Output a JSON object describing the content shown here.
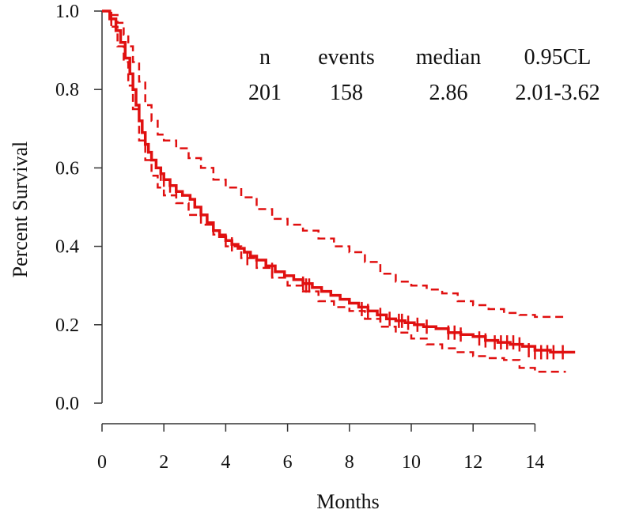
{
  "chart_data": {
    "type": "line",
    "title": "",
    "xlabel": "Months",
    "ylabel": "Percent Survival",
    "xlim": [
      0,
      15.5
    ],
    "ylim": [
      0,
      1.0
    ],
    "x_ticks": [
      "0",
      "2",
      "4",
      "6",
      "8",
      "10",
      "12",
      "14"
    ],
    "y_ticks": [
      "0.0",
      "0.2",
      "0.4",
      "0.6",
      "0.8",
      "1.0"
    ],
    "grid": false,
    "colors": {
      "line": "#e01010",
      "axis": "#333333"
    },
    "summary_table": {
      "headers": [
        "n",
        "events",
        "median",
        "0.95CL"
      ],
      "values": [
        "201",
        "158",
        "2.86",
        "2.01-3.62"
      ]
    },
    "series": [
      {
        "role": "estimate",
        "style": "solid",
        "x": [
          0,
          0.25,
          0.45,
          0.6,
          0.75,
          0.9,
          1.0,
          1.1,
          1.2,
          1.3,
          1.4,
          1.5,
          1.6,
          1.75,
          1.9,
          2.0,
          2.2,
          2.4,
          2.6,
          2.85,
          3.0,
          3.2,
          3.4,
          3.6,
          3.8,
          4.0,
          4.2,
          4.4,
          4.6,
          4.8,
          5.0,
          5.3,
          5.6,
          5.9,
          6.2,
          6.5,
          6.8,
          7.1,
          7.4,
          7.7,
          8.0,
          8.3,
          8.6,
          8.9,
          9.2,
          9.5,
          9.8,
          10.1,
          10.4,
          10.8,
          11.2,
          11.6,
          12.0,
          12.4,
          12.8,
          13.2,
          13.6,
          14.0,
          14.5,
          15.3
        ],
        "y": [
          1.0,
          0.98,
          0.95,
          0.92,
          0.88,
          0.84,
          0.8,
          0.76,
          0.72,
          0.69,
          0.66,
          0.64,
          0.62,
          0.6,
          0.585,
          0.57,
          0.555,
          0.54,
          0.53,
          0.52,
          0.5,
          0.48,
          0.46,
          0.44,
          0.425,
          0.415,
          0.405,
          0.395,
          0.385,
          0.375,
          0.365,
          0.35,
          0.335,
          0.325,
          0.315,
          0.305,
          0.295,
          0.285,
          0.275,
          0.265,
          0.255,
          0.245,
          0.235,
          0.225,
          0.215,
          0.21,
          0.205,
          0.2,
          0.195,
          0.19,
          0.18,
          0.175,
          0.17,
          0.16,
          0.155,
          0.15,
          0.145,
          0.135,
          0.13,
          0.13
        ]
      },
      {
        "role": "upper CL",
        "style": "dashed",
        "x": [
          0,
          0.3,
          0.5,
          0.7,
          0.85,
          1.0,
          1.2,
          1.4,
          1.6,
          1.8,
          2.0,
          2.4,
          2.8,
          3.2,
          3.6,
          4.0,
          4.5,
          5.0,
          5.5,
          6.0,
          6.5,
          7.0,
          7.5,
          8.0,
          8.5,
          9.0,
          9.5,
          10.0,
          10.5,
          11.0,
          11.5,
          12.0,
          12.5,
          13.0,
          13.5,
          14.0,
          14.5,
          15.0
        ],
        "y": [
          1.0,
          0.99,
          0.97,
          0.94,
          0.91,
          0.87,
          0.82,
          0.76,
          0.72,
          0.685,
          0.67,
          0.65,
          0.625,
          0.6,
          0.57,
          0.55,
          0.525,
          0.495,
          0.47,
          0.455,
          0.44,
          0.42,
          0.4,
          0.385,
          0.36,
          0.33,
          0.31,
          0.3,
          0.29,
          0.28,
          0.26,
          0.25,
          0.24,
          0.23,
          0.225,
          0.22,
          0.22,
          0.22
        ]
      },
      {
        "role": "lower CL",
        "style": "dashed",
        "x": [
          0,
          0.3,
          0.5,
          0.7,
          0.85,
          1.0,
          1.2,
          1.4,
          1.6,
          1.8,
          2.0,
          2.4,
          2.8,
          3.2,
          3.6,
          4.0,
          4.5,
          5.0,
          5.5,
          6.0,
          6.5,
          7.0,
          7.5,
          8.0,
          8.5,
          9.0,
          9.5,
          10.0,
          10.5,
          11.0,
          11.5,
          12.0,
          12.5,
          13.0,
          13.5,
          14.0,
          14.5,
          15.0
        ],
        "y": [
          1.0,
          0.96,
          0.91,
          0.87,
          0.81,
          0.75,
          0.67,
          0.62,
          0.58,
          0.55,
          0.53,
          0.51,
          0.48,
          0.455,
          0.43,
          0.4,
          0.37,
          0.345,
          0.32,
          0.3,
          0.285,
          0.26,
          0.245,
          0.235,
          0.215,
          0.195,
          0.18,
          0.165,
          0.15,
          0.14,
          0.13,
          0.12,
          0.115,
          0.11,
          0.09,
          0.08,
          0.08,
          0.08
        ]
      }
    ],
    "censor_marks": {
      "x": [
        0.3,
        1.9,
        2.0,
        2.2,
        2.4,
        4.2,
        4.7,
        5.5,
        6.5,
        6.6,
        6.7,
        8.4,
        8.6,
        9.0,
        9.3,
        9.6,
        9.7,
        9.9,
        10.2,
        10.5,
        11.2,
        11.4,
        11.6,
        12.2,
        12.4,
        12.7,
        12.9,
        13.1,
        13.3,
        13.5,
        13.8,
        14.0,
        14.2,
        14.4,
        14.6,
        14.9
      ],
      "y": [
        0.98,
        0.585,
        0.57,
        0.555,
        0.54,
        0.405,
        0.37,
        0.34,
        0.305,
        0.3,
        0.3,
        0.24,
        0.235,
        0.225,
        0.215,
        0.21,
        0.21,
        0.205,
        0.2,
        0.195,
        0.18,
        0.18,
        0.175,
        0.165,
        0.16,
        0.155,
        0.155,
        0.155,
        0.155,
        0.15,
        0.135,
        0.13,
        0.13,
        0.13,
        0.13,
        0.13
      ]
    }
  }
}
